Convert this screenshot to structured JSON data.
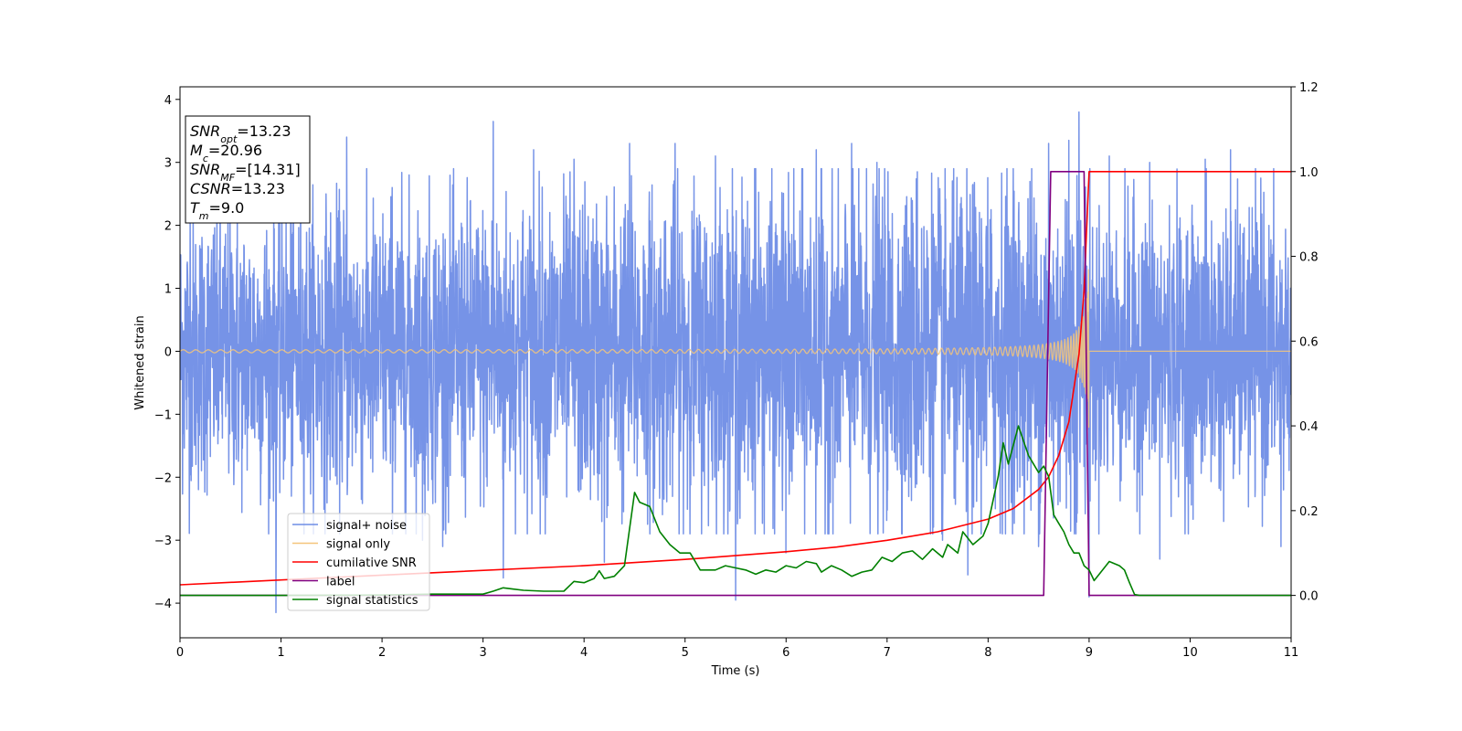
{
  "chart_data": {
    "type": "line",
    "xlabel": "Time (s)",
    "ylabel": "Whitened strain",
    "xlim": [
      0,
      11
    ],
    "ylim": [
      -4.55,
      4.2
    ],
    "y2lim": [
      -0.1,
      1.2
    ],
    "grid": false,
    "legend_placement": "lower-left",
    "x_ticks": [
      0,
      1,
      2,
      3,
      4,
      5,
      6,
      7,
      8,
      9,
      10,
      11
    ],
    "x_tick_labels": [
      "0",
      "1",
      "2",
      "3",
      "4",
      "5",
      "6",
      "7",
      "8",
      "9",
      "10",
      "11"
    ],
    "y_ticks": [
      4,
      3,
      2,
      1,
      0,
      -1,
      -2,
      -3,
      -4
    ],
    "y_tick_labels": [
      "4",
      "3",
      "2",
      "1",
      "0",
      "−1",
      "−2",
      "−3",
      "−4"
    ],
    "y2_ticks": [
      1.2,
      1.0,
      0.8,
      0.6,
      0.4,
      0.2,
      0.0
    ],
    "y2_tick_labels": [
      "1.2",
      "1.0",
      "0.8",
      "0.6",
      "0.4",
      "0.2",
      "0.0"
    ],
    "annotation": {
      "lines": [
        {
          "var": "SNR",
          "sub": "opt",
          "value": "=13.23"
        },
        {
          "var": "M",
          "sub": "c",
          "value": "=20.96"
        },
        {
          "var": "SNR",
          "sub": "MF",
          "value": "=[14.31]"
        },
        {
          "var": "CSNR",
          "sub": "",
          "value": "=13.23"
        },
        {
          "var": "T",
          "sub": "m",
          "value": "=9.0"
        }
      ]
    },
    "series": [
      {
        "name": "signal+ noise",
        "color": "#6f8de6",
        "axis": "left",
        "style": "noise",
        "envelope": [
          [
            0,
            2.0
          ],
          [
            2,
            2.1
          ],
          [
            4,
            2.2
          ],
          [
            6,
            2.3
          ],
          [
            8,
            2.4
          ],
          [
            8.9,
            2.6
          ],
          [
            9.0,
            2.0
          ],
          [
            11,
            2.0
          ]
        ],
        "spikes": [
          [
            0.1,
            2.2
          ],
          [
            0.95,
            -4.15
          ],
          [
            1.1,
            2.75
          ],
          [
            1.65,
            3.4
          ],
          [
            2.1,
            2.6
          ],
          [
            2.4,
            -3.0
          ],
          [
            2.6,
            -3.1
          ],
          [
            3.1,
            3.65
          ],
          [
            3.2,
            -3.6
          ],
          [
            3.5,
            3.2
          ],
          [
            3.9,
            3.05
          ],
          [
            4.2,
            -3.35
          ],
          [
            4.45,
            3.3
          ],
          [
            4.9,
            3.3
          ],
          [
            5.3,
            3.1
          ],
          [
            5.5,
            -3.95
          ],
          [
            5.7,
            2.9
          ],
          [
            6.0,
            -3.2
          ],
          [
            6.3,
            3.2
          ],
          [
            6.65,
            3.3
          ],
          [
            6.9,
            3.0
          ],
          [
            7.3,
            2.85
          ],
          [
            7.55,
            -3.0
          ],
          [
            7.8,
            -3.55
          ],
          [
            8.25,
            2.9
          ],
          [
            8.5,
            -3.1
          ],
          [
            8.6,
            3.3
          ],
          [
            8.8,
            3.35
          ],
          [
            8.9,
            3.8
          ],
          [
            9.0,
            -3.9
          ],
          [
            9.2,
            3.1
          ],
          [
            9.6,
            3.0
          ],
          [
            9.7,
            -3.3
          ],
          [
            10.15,
            3.05
          ],
          [
            10.4,
            3.2
          ],
          [
            10.7,
            2.75
          ],
          [
            10.9,
            -3.1
          ]
        ]
      },
      {
        "name": "signal only",
        "color": "#f5c57a",
        "axis": "left",
        "style": "chirp",
        "f0": 8,
        "tc": 9.0,
        "amplitude_at_start": 0.02,
        "amplitude_at_end": 1.5
      },
      {
        "name": "cumilative SNR",
        "color": "#ff0000",
        "axis": "right",
        "points": [
          [
            0,
            0.025
          ],
          [
            2,
            0.048
          ],
          [
            4,
            0.07
          ],
          [
            5,
            0.085
          ],
          [
            6,
            0.103
          ],
          [
            6.5,
            0.114
          ],
          [
            7,
            0.13
          ],
          [
            7.5,
            0.15
          ],
          [
            8,
            0.18
          ],
          [
            8.25,
            0.205
          ],
          [
            8.5,
            0.25
          ],
          [
            8.6,
            0.28
          ],
          [
            8.7,
            0.33
          ],
          [
            8.8,
            0.41
          ],
          [
            8.9,
            0.57
          ],
          [
            8.95,
            0.72
          ],
          [
            8.985,
            0.92
          ],
          [
            9.0,
            1.0
          ],
          [
            11,
            1.0
          ]
        ]
      },
      {
        "name": "label",
        "color": "#800080",
        "axis": "right",
        "points": [
          [
            0,
            0
          ],
          [
            8.55,
            0
          ],
          [
            8.62,
            1.0
          ],
          [
            8.95,
            1.0
          ],
          [
            9.0,
            0
          ],
          [
            11,
            0
          ]
        ]
      },
      {
        "name": "signal statistics",
        "color": "#008000",
        "axis": "right",
        "points": [
          [
            0,
            0.0
          ],
          [
            1,
            0.0
          ],
          [
            2,
            0.001
          ],
          [
            2.5,
            0.003
          ],
          [
            3.0,
            0.003
          ],
          [
            3.1,
            0.01
          ],
          [
            3.2,
            0.018
          ],
          [
            3.3,
            0.015
          ],
          [
            3.4,
            0.012
          ],
          [
            3.6,
            0.01
          ],
          [
            3.8,
            0.01
          ],
          [
            3.9,
            0.033
          ],
          [
            4.0,
            0.03
          ],
          [
            4.1,
            0.04
          ],
          [
            4.15,
            0.058
          ],
          [
            4.2,
            0.04
          ],
          [
            4.3,
            0.045
          ],
          [
            4.4,
            0.07
          ],
          [
            4.5,
            0.243
          ],
          [
            4.55,
            0.22
          ],
          [
            4.65,
            0.21
          ],
          [
            4.75,
            0.15
          ],
          [
            4.85,
            0.12
          ],
          [
            4.95,
            0.1
          ],
          [
            5.05,
            0.1
          ],
          [
            5.15,
            0.06
          ],
          [
            5.3,
            0.06
          ],
          [
            5.4,
            0.07
          ],
          [
            5.5,
            0.065
          ],
          [
            5.6,
            0.06
          ],
          [
            5.7,
            0.05
          ],
          [
            5.8,
            0.06
          ],
          [
            5.9,
            0.055
          ],
          [
            6.0,
            0.07
          ],
          [
            6.1,
            0.065
          ],
          [
            6.2,
            0.08
          ],
          [
            6.3,
            0.075
          ],
          [
            6.35,
            0.055
          ],
          [
            6.45,
            0.07
          ],
          [
            6.55,
            0.06
          ],
          [
            6.65,
            0.045
          ],
          [
            6.75,
            0.055
          ],
          [
            6.85,
            0.06
          ],
          [
            6.95,
            0.09
          ],
          [
            7.05,
            0.08
          ],
          [
            7.15,
            0.1
          ],
          [
            7.25,
            0.105
          ],
          [
            7.35,
            0.085
          ],
          [
            7.45,
            0.11
          ],
          [
            7.55,
            0.09
          ],
          [
            7.6,
            0.12
          ],
          [
            7.7,
            0.1
          ],
          [
            7.75,
            0.15
          ],
          [
            7.85,
            0.12
          ],
          [
            7.95,
            0.14
          ],
          [
            8.0,
            0.17
          ],
          [
            8.1,
            0.28
          ],
          [
            8.15,
            0.36
          ],
          [
            8.2,
            0.31
          ],
          [
            8.3,
            0.4
          ],
          [
            8.4,
            0.33
          ],
          [
            8.5,
            0.29
          ],
          [
            8.55,
            0.305
          ],
          [
            8.6,
            0.28
          ],
          [
            8.65,
            0.19
          ],
          [
            8.7,
            0.17
          ],
          [
            8.75,
            0.15
          ],
          [
            8.8,
            0.12
          ],
          [
            8.85,
            0.1
          ],
          [
            8.9,
            0.1
          ],
          [
            8.95,
            0.07
          ],
          [
            9.0,
            0.06
          ],
          [
            9.05,
            0.035
          ],
          [
            9.1,
            0.05
          ],
          [
            9.2,
            0.08
          ],
          [
            9.3,
            0.07
          ],
          [
            9.35,
            0.06
          ],
          [
            9.4,
            0.03
          ],
          [
            9.45,
            0.002
          ],
          [
            9.5,
            0.0
          ],
          [
            11,
            0.0
          ]
        ]
      }
    ]
  }
}
